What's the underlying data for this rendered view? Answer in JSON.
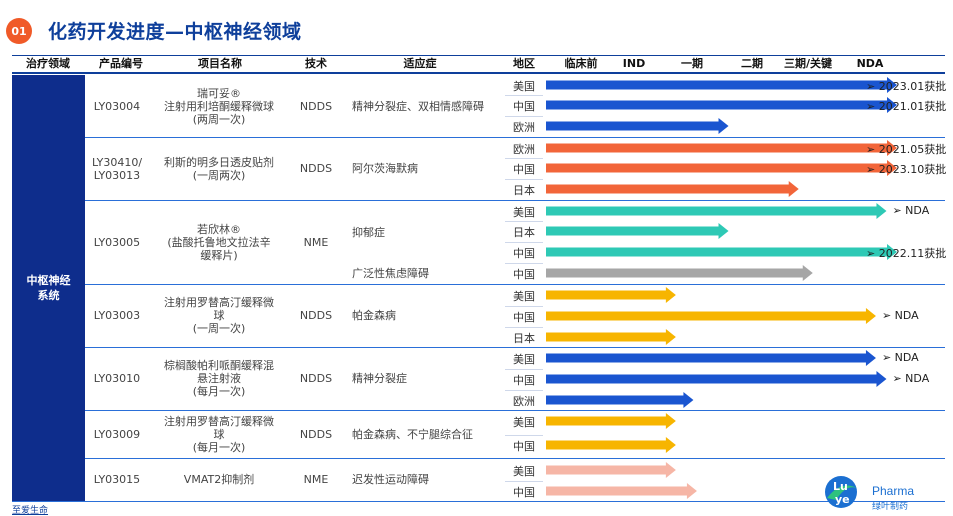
{
  "badge": "01",
  "title": "化药开发进度—中枢神经领域",
  "headers": [
    "治疗领域",
    "产品编号",
    "项目名称",
    "技术",
    "适应症",
    "地区",
    "临床前",
    "IND",
    "一期",
    "二期",
    "三期/关键",
    "NDA"
  ],
  "therapeutic_area": "中枢神经\n系统",
  "colors": {
    "blue": "#1a55d0",
    "orange": "#f26539",
    "teal": "#2ec9b5",
    "grey": "#a6a6a6",
    "gold": "#f7b500",
    "pink": "#f6b6a6",
    "brand": "#0e3f9b"
  },
  "stages_scale_note": "progress measured as fraction from 临床前 to NDA end",
  "products": [
    {
      "code": "LY03004",
      "name": "瑞可妥®\n注射用利培酮缓释微球\n(两周一次)",
      "tech": "NDDS",
      "indications": [
        "精神分裂症、双相情感障碍"
      ],
      "rows": [
        {
          "region": "美国",
          "progress": 1.0,
          "color": "blue",
          "note": "➢ 2023.01获批"
        },
        {
          "region": "中国",
          "progress": 1.0,
          "color": "blue",
          "note": "➢ 2021.01获批"
        },
        {
          "region": "欧洲",
          "progress": 0.52,
          "color": "blue",
          "note": ""
        }
      ]
    },
    {
      "code": "LY30410/\nLY03013",
      "name": "利斯的明多日透皮贴剂\n(一周两次)",
      "tech": "NDDS",
      "indications": [
        "阿尔茨海默病"
      ],
      "rows": [
        {
          "region": "欧洲",
          "progress": 1.0,
          "color": "orange",
          "note": "➢ 2021.05获批"
        },
        {
          "region": "中国",
          "progress": 1.0,
          "color": "orange",
          "note": "➢ 2023.10获批"
        },
        {
          "region": "日本",
          "progress": 0.72,
          "color": "orange",
          "note": ""
        }
      ]
    },
    {
      "code": "LY03005",
      "name": "若欣林®\n(盐酸托鲁地文拉法辛\n缓释片)",
      "tech": "NME",
      "indications": [
        "抑郁症",
        "广泛性焦虑障碍"
      ],
      "rows": [
        {
          "region": "美国",
          "progress": 0.97,
          "color": "teal",
          "note": "➢ NDA"
        },
        {
          "region": "日本",
          "progress": 0.52,
          "color": "teal",
          "note": ""
        },
        {
          "region": "中国",
          "progress": 1.0,
          "color": "teal",
          "note": "➢ 2022.11获批"
        },
        {
          "region": "中国",
          "progress": 0.76,
          "color": "grey",
          "note": ""
        }
      ]
    },
    {
      "code": "LY03003",
      "name": "注射用罗替高汀缓释微\n球\n(一周一次)",
      "tech": "NDDS",
      "indications": [
        "帕金森病"
      ],
      "rows": [
        {
          "region": "美国",
          "progress": 0.37,
          "color": "gold",
          "note": ""
        },
        {
          "region": "中国",
          "progress": 0.94,
          "color": "gold",
          "note": "➢ NDA"
        },
        {
          "region": "日本",
          "progress": 0.37,
          "color": "gold",
          "note": ""
        }
      ]
    },
    {
      "code": "LY03010",
      "name": "棕榈酸帕利哌酮缓释混\n悬注射液\n(每月一次)",
      "tech": "NDDS",
      "indications": [
        "精神分裂症"
      ],
      "rows": [
        {
          "region": "美国",
          "progress": 0.94,
          "color": "blue",
          "note": "➢ NDA"
        },
        {
          "region": "中国",
          "progress": 0.97,
          "color": "blue",
          "note": "➢ NDA"
        },
        {
          "region": "欧洲",
          "progress": 0.42,
          "color": "blue",
          "note": ""
        }
      ]
    },
    {
      "code": "LY03009",
      "name": "注射用罗替高汀缓释微\n球\n(每月一次)",
      "tech": "NDDS",
      "indications": [
        "帕金森病、不宁腿综合征"
      ],
      "rows": [
        {
          "region": "美国",
          "progress": 0.37,
          "color": "gold",
          "note": ""
        },
        {
          "region": "中国",
          "progress": 0.37,
          "color": "gold",
          "note": ""
        }
      ]
    },
    {
      "code": "LY03015",
      "name": "VMAT2抑制剂",
      "tech": "NME",
      "indications": [
        "迟发性运动障碍"
      ],
      "rows": [
        {
          "region": "美国",
          "progress": 0.37,
          "color": "pink",
          "note": ""
        },
        {
          "region": "中国",
          "progress": 0.43,
          "color": "pink",
          "note": ""
        }
      ]
    }
  ],
  "footer": "至爱生命",
  "logo": {
    "mark": "Lu ye",
    "brand": "Pharma",
    "cn": "绿叶制药"
  }
}
